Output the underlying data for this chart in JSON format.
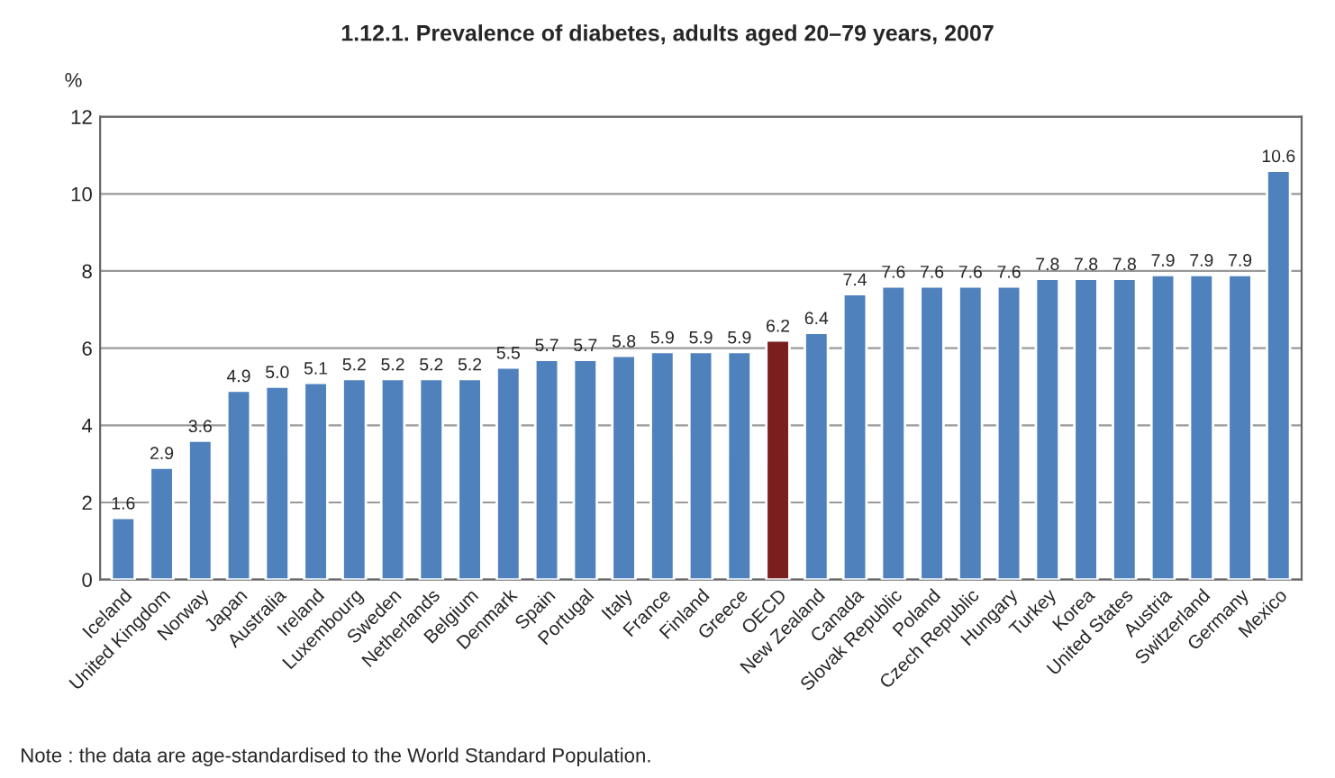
{
  "chart_data": {
    "type": "bar",
    "title": "1.12.1. Prevalence of diabetes, adults aged 20–79 years, 2007",
    "ylabel": "%",
    "categories": [
      "Iceland",
      "United Kingdom",
      "Norway",
      "Japan",
      "Australia",
      "Ireland",
      "Luxembourg",
      "Sweden",
      "Netherlands",
      "Belgium",
      "Denmark",
      "Spain",
      "Portugal",
      "Italy",
      "France",
      "Finland",
      "Greece",
      "OECD",
      "New Zealand",
      "Canada",
      "Slovak Republic",
      "Poland",
      "Czech Republic",
      "Hungary",
      "Turkey",
      "Korea",
      "United States",
      "Austria",
      "Switzerland",
      "Germany",
      "Mexico"
    ],
    "values": [
      1.6,
      2.9,
      3.6,
      4.9,
      5.0,
      5.1,
      5.2,
      5.2,
      5.2,
      5.2,
      5.5,
      5.7,
      5.7,
      5.8,
      5.9,
      5.9,
      5.9,
      6.2,
      6.4,
      7.4,
      7.6,
      7.6,
      7.6,
      7.6,
      7.8,
      7.8,
      7.8,
      7.9,
      7.9,
      7.9,
      10.6
    ],
    "value_labels": [
      "1.6",
      "2.9",
      "3.6",
      "4.9",
      "5.0",
      "5.1",
      "5.2",
      "5.2",
      "5.2",
      "5.2",
      "5.5",
      "5.7",
      "5.7",
      "5.8",
      "5.9",
      "5.9",
      "5.9",
      "6.2",
      "6.4",
      "7.4",
      "7.6",
      "7.6",
      "7.6",
      "7.6",
      "7.8",
      "7.8",
      "7.8",
      "7.9",
      "7.9",
      "7.9",
      "10.6"
    ],
    "colors": [
      "#4f81bd",
      "#4f81bd",
      "#4f81bd",
      "#4f81bd",
      "#4f81bd",
      "#4f81bd",
      "#4f81bd",
      "#4f81bd",
      "#4f81bd",
      "#4f81bd",
      "#4f81bd",
      "#4f81bd",
      "#4f81bd",
      "#4f81bd",
      "#4f81bd",
      "#4f81bd",
      "#4f81bd",
      "#7b1e1e",
      "#4f81bd",
      "#4f81bd",
      "#4f81bd",
      "#4f81bd",
      "#4f81bd",
      "#4f81bd",
      "#4f81bd",
      "#4f81bd",
      "#4f81bd",
      "#4f81bd",
      "#4f81bd",
      "#4f81bd",
      "#4f81bd"
    ],
    "ylim": [
      0,
      12
    ],
    "yticks": [
      0,
      2,
      4,
      6,
      8,
      10,
      12
    ],
    "grid": "y",
    "annotations": [
      "Note : the data are age-standardised to the World Standard Population."
    ]
  }
}
